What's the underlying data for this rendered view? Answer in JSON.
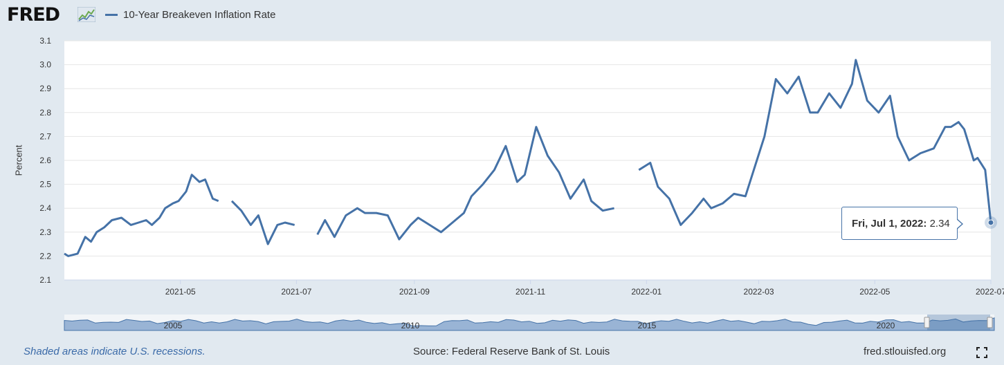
{
  "header": {
    "logo_text": "FRED",
    "series_name": "10-Year Breakeven Inflation Rate"
  },
  "footer": {
    "recession_note": "Shaded areas indicate U.S. recessions.",
    "source": "Source: Federal Reserve Bank of St. Louis",
    "site": "fred.stlouisfed.org"
  },
  "tooltip": {
    "date": "Fri, Jul 1, 2022:",
    "value": "2.34"
  },
  "colors": {
    "series": "#4572a7",
    "background": "#e1e9f0",
    "plot": "#ffffff",
    "navigator": "#8aa8cf"
  },
  "icons": [
    "fred-logo-chart-icon",
    "fullscreen-icon"
  ],
  "chart_data": {
    "type": "line",
    "title": "",
    "xlabel": "",
    "ylabel": "Percent",
    "ylim": [
      2.1,
      3.1
    ],
    "xlim": [
      "2021-03-01",
      "2022-07-01"
    ],
    "yticks": [
      "2.1",
      "2.2",
      "2.3",
      "2.4",
      "2.5",
      "2.6",
      "2.7",
      "2.8",
      "2.9",
      "3.0",
      "3.1"
    ],
    "xticks": [
      "2021-05",
      "2021-07",
      "2021-09",
      "2021-11",
      "2022-01",
      "2022-03",
      "2022-05",
      "2022-07"
    ],
    "grid": true,
    "legend": "top-left",
    "series": [
      {
        "name": "10-Year Breakeven Inflation Rate",
        "x": [
          "2021-03-01",
          "2021-03-03",
          "2021-03-08",
          "2021-03-12",
          "2021-03-15",
          "2021-03-18",
          "2021-03-22",
          "2021-03-26",
          "2021-03-31",
          "2021-04-05",
          "2021-04-09",
          "2021-04-13",
          "2021-04-16",
          "2021-04-20",
          "2021-04-23",
          "2021-04-27",
          "2021-04-30",
          "2021-05-04",
          "2021-05-07",
          "2021-05-11",
          "2021-05-14",
          "2021-05-18",
          "2021-05-21",
          "2021-05-25",
          "2021-05-28",
          "2021-06-02",
          "2021-06-07",
          "2021-06-11",
          "2021-06-16",
          "2021-06-21",
          "2021-06-25",
          "2021-06-30",
          "2021-07-06",
          "2021-07-12",
          "2021-07-16",
          "2021-07-21",
          "2021-07-27",
          "2021-08-02",
          "2021-08-06",
          "2021-08-12",
          "2021-08-18",
          "2021-08-24",
          "2021-08-30",
          "2021-09-03",
          "2021-09-09",
          "2021-09-15",
          "2021-09-21",
          "2021-09-27",
          "2021-10-01",
          "2021-10-07",
          "2021-10-13",
          "2021-10-19",
          "2021-10-25",
          "2021-10-29",
          "2021-11-04",
          "2021-11-10",
          "2021-11-16",
          "2021-11-22",
          "2021-11-29",
          "2021-12-03",
          "2021-12-09",
          "2021-12-15",
          "2021-12-21",
          "2021-12-28",
          "2022-01-03",
          "2022-01-07",
          "2022-01-13",
          "2022-01-19",
          "2022-01-25",
          "2022-01-31",
          "2022-02-04",
          "2022-02-10",
          "2022-02-16",
          "2022-02-22",
          "2022-02-28",
          "2022-03-04",
          "2022-03-10",
          "2022-03-16",
          "2022-03-22",
          "2022-03-28",
          "2022-04-01",
          "2022-04-07",
          "2022-04-13",
          "2022-04-19",
          "2022-04-21",
          "2022-04-27",
          "2022-05-03",
          "2022-05-09",
          "2022-05-13",
          "2022-05-19",
          "2022-05-25",
          "2022-06-01",
          "2022-06-07",
          "2022-06-10",
          "2022-06-14",
          "2022-06-17",
          "2022-06-22",
          "2022-06-24",
          "2022-06-28",
          "2022-07-01"
        ],
        "values": [
          2.21,
          2.2,
          2.21,
          2.28,
          2.26,
          2.3,
          2.32,
          2.35,
          2.36,
          2.33,
          2.34,
          2.35,
          2.33,
          2.36,
          2.4,
          2.42,
          2.43,
          2.47,
          2.54,
          2.51,
          2.52,
          2.44,
          2.43,
          null,
          2.43,
          2.39,
          2.33,
          2.37,
          2.25,
          2.33,
          2.34,
          2.33,
          null,
          2.29,
          2.35,
          2.28,
          2.37,
          2.4,
          2.38,
          2.38,
          2.37,
          2.27,
          2.33,
          2.36,
          2.33,
          2.3,
          2.34,
          2.38,
          2.45,
          2.5,
          2.56,
          2.66,
          2.51,
          2.54,
          2.74,
          2.62,
          2.55,
          2.44,
          2.52,
          2.43,
          2.39,
          2.4,
          null,
          2.56,
          2.59,
          2.49,
          2.44,
          2.33,
          2.38,
          2.44,
          2.4,
          2.42,
          2.46,
          2.45,
          2.6,
          2.7,
          2.94,
          2.88,
          2.95,
          2.8,
          2.8,
          2.88,
          2.82,
          2.92,
          3.02,
          2.85,
          2.8,
          2.87,
          2.7,
          2.6,
          2.63,
          2.65,
          2.74,
          2.74,
          2.76,
          2.73,
          2.6,
          2.61,
          2.56,
          2.34
        ]
      }
    ],
    "navigator_ticks": [
      "2005",
      "2010",
      "2015",
      "2020"
    ]
  }
}
